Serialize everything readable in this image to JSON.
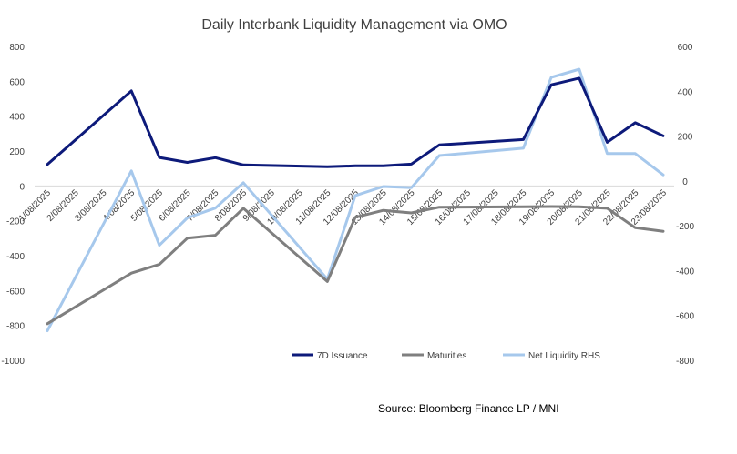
{
  "chart_data": {
    "type": "line",
    "title": "Daily Interbank Liquidity Management via OMO",
    "source": "Source: Bloomberg Finance LP / MNI",
    "categories": [
      "1/08/2025",
      "2/08/2025",
      "3/08/2025",
      "4/08/2025",
      "5/08/2025",
      "6/08/2025",
      "7/08/2025",
      "8/08/2025",
      "9/08/2025",
      "10/08/2025",
      "11/08/2025",
      "12/08/2025",
      "13/08/2025",
      "14/08/2025",
      "15/08/2025",
      "16/08/2025",
      "17/08/2025",
      "18/08/2025",
      "19/08/2025",
      "20/08/2025",
      "21/08/2025",
      "22/08/2025",
      "23/08/2025"
    ],
    "points": [
      {
        "date": "1/08/2025",
        "issuance": 123,
        "maturities": -790,
        "net": -668
      },
      {
        "date": "4/08/2025",
        "issuance": 545,
        "maturities": -500,
        "net": 45
      },
      {
        "date": "5/08/2025",
        "issuance": 163,
        "maturities": -450,
        "net": -287
      },
      {
        "date": "6/08/2025",
        "issuance": 135,
        "maturities": -300,
        "net": -165
      },
      {
        "date": "7/08/2025",
        "issuance": 162,
        "maturities": -283,
        "net": -121
      },
      {
        "date": "8/08/2025",
        "issuance": 120,
        "maturities": -128,
        "net": -8
      },
      {
        "date": "11/08/2025",
        "issuance": 110,
        "maturities": -548,
        "net": -438
      },
      {
        "date": "12/08/2025",
        "issuance": 115,
        "maturities": -180,
        "net": -65
      },
      {
        "date": "13/08/2025",
        "issuance": 115,
        "maturities": -140,
        "net": -25
      },
      {
        "date": "14/08/2025",
        "issuance": 125,
        "maturities": -155,
        "net": -30
      },
      {
        "date": "15/08/2025",
        "issuance": 235,
        "maturities": -122,
        "net": 113
      },
      {
        "date": "18/08/2025",
        "issuance": 266,
        "maturities": -120,
        "net": 146
      },
      {
        "date": "19/08/2025",
        "issuance": 580,
        "maturities": -118,
        "net": 462
      },
      {
        "date": "20/08/2025",
        "issuance": 618,
        "maturities": -120,
        "net": 498
      },
      {
        "date": "21/08/2025",
        "issuance": 250,
        "maturities": -128,
        "net": 122
      },
      {
        "date": "22/08/2025",
        "issuance": 362,
        "maturities": -240,
        "net": 122
      },
      {
        "date": "23/08/2025",
        "issuance": 287,
        "maturities": -260,
        "net": 27
      }
    ],
    "series": [
      {
        "name": "7D Issuance",
        "key": "issuance",
        "axis": "left",
        "color": "#0d1a7a"
      },
      {
        "name": "Maturities",
        "key": "maturities",
        "axis": "left",
        "color": "#7f7f7f"
      },
      {
        "name": "Net Liquidity RHS",
        "key": "net",
        "axis": "right",
        "color": "#a6c8ec"
      }
    ],
    "y_left": {
      "min": -1000,
      "max": 800,
      "ticks": [
        800,
        600,
        400,
        200,
        0,
        -200,
        -400,
        -600,
        -800,
        -1000
      ]
    },
    "y_right": {
      "min": -800,
      "max": 600,
      "ticks": [
        600,
        400,
        200,
        0,
        -200,
        -400,
        -600,
        -800
      ]
    },
    "grid": false,
    "legend_position": "bottom"
  }
}
